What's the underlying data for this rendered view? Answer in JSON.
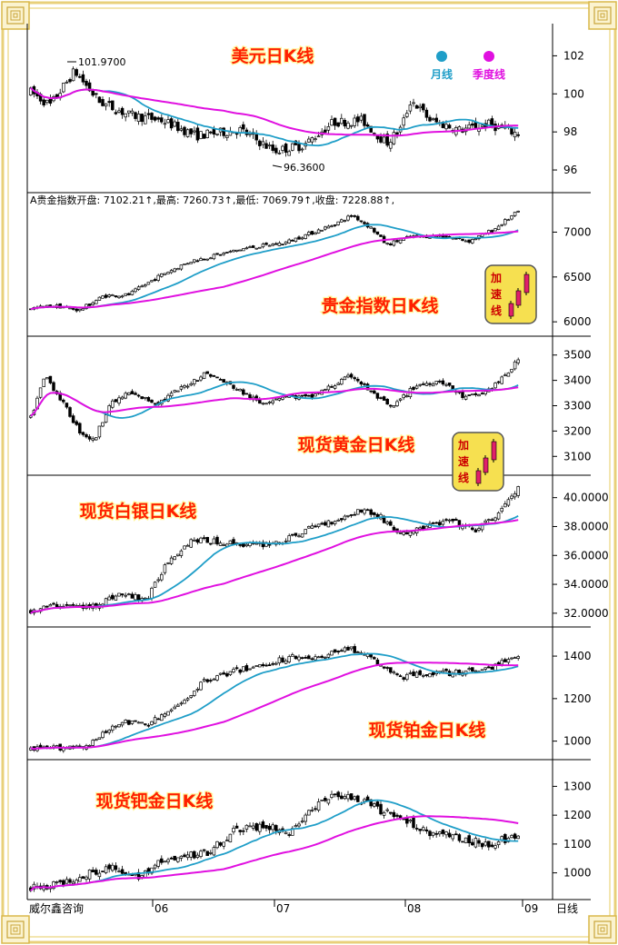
{
  "frame_colors": {
    "border": "#e8d07a",
    "inner": "#f3e6b0"
  },
  "colors": {
    "monthly": "#1f9ec8",
    "quarterly": "#e010e0",
    "title": "#ff2000",
    "title_outline": "#fff7a0",
    "badge_bg": "#f6e050",
    "badge_text": "#cc0000",
    "candle_up": "#ffffff",
    "candle_down": "#000000"
  },
  "footer": {
    "source": "威尔鑫咨询",
    "period_label": "日线",
    "x_ticks": [
      "06",
      "07",
      "08",
      "09"
    ]
  },
  "legend": {
    "monthly": "月线",
    "quarterly": "季度线"
  },
  "badge_text": [
    "加",
    "速",
    "线"
  ],
  "panels": [
    {
      "id": "usd",
      "title": "美元日K线",
      "yticks": [
        "102",
        "100",
        "98",
        "96"
      ],
      "ymin": 95,
      "ymax": 103.5,
      "annotations": {
        "high": "101.9700",
        "low": "96.3600"
      },
      "chart_data": {
        "type": "candlestick",
        "series": [
          {
            "name": "月线"
          },
          {
            "name": "季度线"
          }
        ]
      }
    },
    {
      "id": "pm",
      "title": "贵金指数日K线",
      "yticks": [
        "7000",
        "6500",
        "6000"
      ],
      "ymin": 5880,
      "ymax": 7400,
      "info": "A贵金指数开盘: 7102.21↑,最高: 7260.73↑,最低: 7069.79↑,收盘: 7228.88↑,",
      "chart_data": {
        "type": "candlestick",
        "last": {
          "open": 7102.21,
          "high": 7260.73,
          "low": 7069.79,
          "close": 7228.88
        }
      }
    },
    {
      "id": "gold",
      "title": "现货黄金日K线",
      "yticks": [
        "3500",
        "3400",
        "3300",
        "3200",
        "3100"
      ],
      "ymin": 3040,
      "ymax": 3560,
      "chart_data": {
        "type": "candlestick"
      }
    },
    {
      "id": "silver",
      "title": "现货白银日K线",
      "yticks": [
        "40.0000",
        "38.0000",
        "36.0000",
        "34.0000",
        "32.0000"
      ],
      "ymin": 31.3,
      "ymax": 41.3,
      "chart_data": {
        "type": "candlestick"
      }
    },
    {
      "id": "plat",
      "title": "现货铂金日K线",
      "yticks": [
        "1400",
        "1200",
        "1000"
      ],
      "ymin": 930,
      "ymax": 1520,
      "chart_data": {
        "type": "candlestick"
      }
    },
    {
      "id": "pall",
      "title": "现货钯金日K线",
      "yticks": [
        "1300",
        "1200",
        "1100",
        "1000"
      ],
      "ymin": 920,
      "ymax": 1380,
      "chart_data": {
        "type": "candlestick"
      }
    }
  ]
}
